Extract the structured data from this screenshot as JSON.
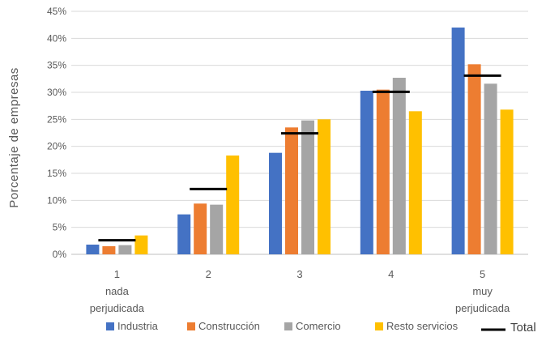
{
  "chart_data": {
    "type": "bar",
    "ylabel": "Porcentaje  de empresas",
    "xlabel": "",
    "ylim": [
      0,
      45
    ],
    "yticks": [
      "0%",
      "5%",
      "10%",
      "15%",
      "20%",
      "25%",
      "30%",
      "35%",
      "40%",
      "45%"
    ],
    "grid": true,
    "legend_position": "bottom",
    "categories": [
      {
        "lines": [
          "1",
          "nada",
          "perjudicada"
        ]
      },
      {
        "lines": [
          "2"
        ]
      },
      {
        "lines": [
          "3"
        ]
      },
      {
        "lines": [
          "4"
        ]
      },
      {
        "lines": [
          "5",
          "muy",
          "perjudicada"
        ]
      }
    ],
    "series": [
      {
        "name": "Industria",
        "color": "#4472C4",
        "values": [
          1.8,
          7.4,
          18.8,
          30.3,
          42.0
        ]
      },
      {
        "name": "Construcción",
        "color": "#ED7D31",
        "values": [
          1.5,
          9.4,
          23.5,
          30.5,
          35.2
        ]
      },
      {
        "name": "Comercio",
        "color": "#A5A5A5",
        "values": [
          1.7,
          9.2,
          24.8,
          32.7,
          31.6
        ]
      },
      {
        "name": "Resto servicios",
        "color": "#FFC000",
        "values": [
          3.5,
          18.3,
          25.0,
          26.5,
          26.8
        ]
      }
    ],
    "total": {
      "name": "Total",
      "color": "#000000",
      "values": [
        2.6,
        12.1,
        22.4,
        30.1,
        33.1
      ]
    }
  }
}
